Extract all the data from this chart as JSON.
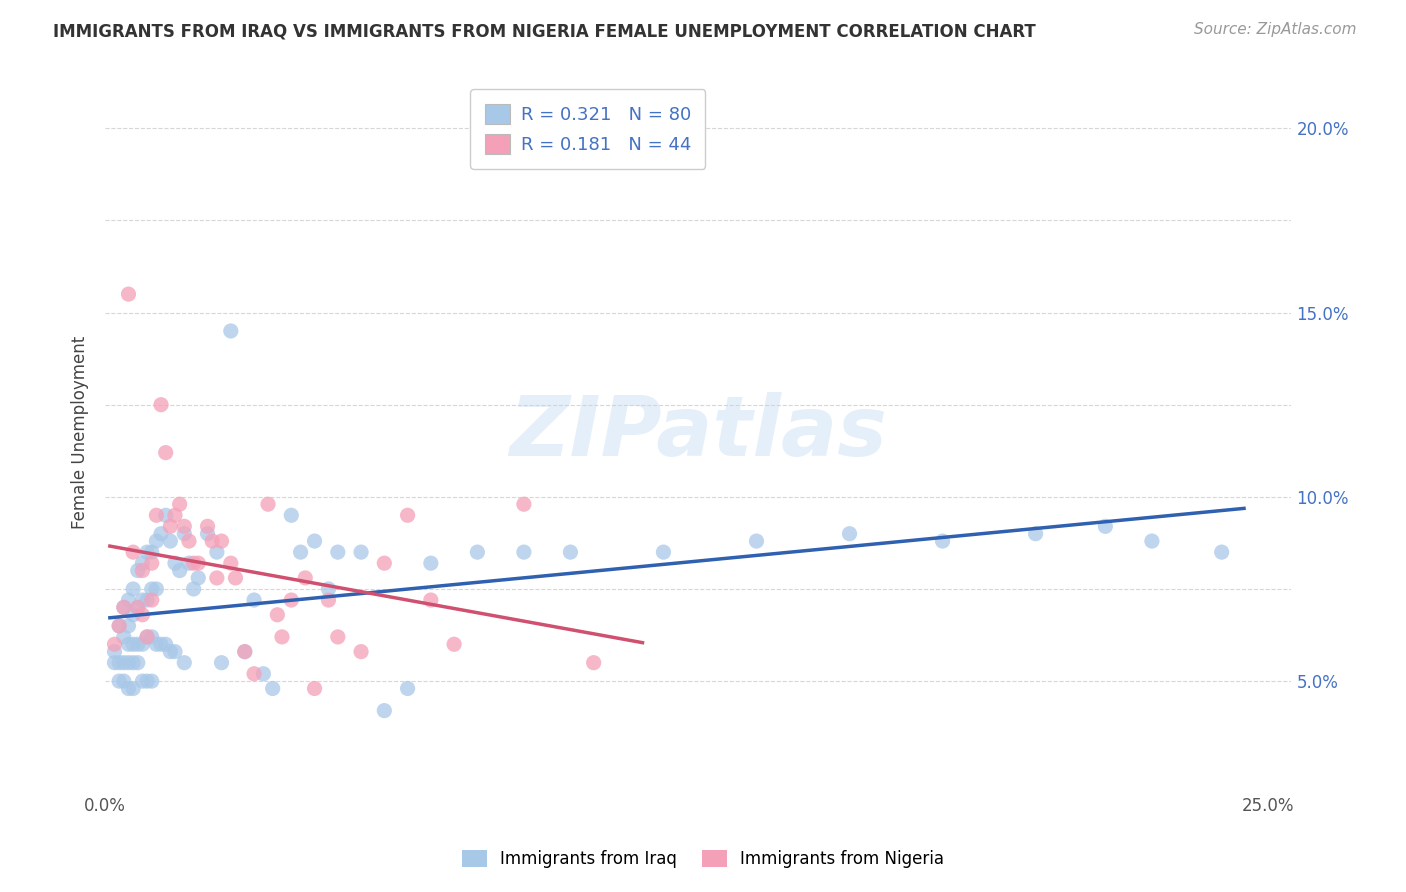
{
  "title": "IMMIGRANTS FROM IRAQ VS IMMIGRANTS FROM NIGERIA FEMALE UNEMPLOYMENT CORRELATION CHART",
  "source": "Source: ZipAtlas.com",
  "ylabel": "Female Unemployment",
  "y_lim": [
    0.02,
    0.215
  ],
  "x_lim": [
    0.0,
    0.255
  ],
  "iraq_R": "0.321",
  "iraq_N": "80",
  "nigeria_R": "0.181",
  "nigeria_N": "44",
  "iraq_color": "#a8c8e8",
  "nigeria_color": "#f4a0b8",
  "iraq_line_color": "#3060b0",
  "nigeria_line_color": "#d05070",
  "legend_label_iraq": "Immigrants from Iraq",
  "legend_label_nigeria": "Immigrants from Nigeria",
  "label_color": "#4472c4",
  "yticks": [
    0.05,
    0.075,
    0.1,
    0.125,
    0.15,
    0.175,
    0.2
  ],
  "ytick_labels": [
    "5.0%",
    "",
    "10.0%",
    "",
    "15.0%",
    "",
    "20.0%"
  ],
  "iraq_x": [
    0.002,
    0.002,
    0.003,
    0.003,
    0.003,
    0.004,
    0.004,
    0.004,
    0.004,
    0.005,
    0.005,
    0.005,
    0.005,
    0.005,
    0.006,
    0.006,
    0.006,
    0.006,
    0.006,
    0.007,
    0.007,
    0.007,
    0.007,
    0.008,
    0.008,
    0.008,
    0.008,
    0.009,
    0.009,
    0.009,
    0.009,
    0.01,
    0.01,
    0.01,
    0.01,
    0.011,
    0.011,
    0.011,
    0.012,
    0.012,
    0.013,
    0.013,
    0.014,
    0.014,
    0.015,
    0.015,
    0.016,
    0.017,
    0.017,
    0.018,
    0.019,
    0.02,
    0.022,
    0.024,
    0.025,
    0.027,
    0.03,
    0.032,
    0.034,
    0.036,
    0.04,
    0.042,
    0.045,
    0.048,
    0.05,
    0.055,
    0.06,
    0.065,
    0.07,
    0.08,
    0.09,
    0.1,
    0.12,
    0.14,
    0.16,
    0.18,
    0.2,
    0.215,
    0.225,
    0.24
  ],
  "iraq_y": [
    0.058,
    0.055,
    0.065,
    0.055,
    0.05,
    0.07,
    0.062,
    0.055,
    0.05,
    0.072,
    0.065,
    0.06,
    0.055,
    0.048,
    0.075,
    0.068,
    0.06,
    0.055,
    0.048,
    0.08,
    0.07,
    0.06,
    0.055,
    0.082,
    0.072,
    0.06,
    0.05,
    0.085,
    0.072,
    0.062,
    0.05,
    0.085,
    0.075,
    0.062,
    0.05,
    0.088,
    0.075,
    0.06,
    0.09,
    0.06,
    0.095,
    0.06,
    0.088,
    0.058,
    0.082,
    0.058,
    0.08,
    0.09,
    0.055,
    0.082,
    0.075,
    0.078,
    0.09,
    0.085,
    0.055,
    0.145,
    0.058,
    0.072,
    0.052,
    0.048,
    0.095,
    0.085,
    0.088,
    0.075,
    0.085,
    0.085,
    0.042,
    0.048,
    0.082,
    0.085,
    0.085,
    0.085,
    0.085,
    0.088,
    0.09,
    0.088,
    0.09,
    0.092,
    0.088,
    0.085
  ],
  "nigeria_x": [
    0.002,
    0.003,
    0.004,
    0.005,
    0.006,
    0.007,
    0.008,
    0.008,
    0.009,
    0.01,
    0.01,
    0.011,
    0.012,
    0.013,
    0.014,
    0.015,
    0.016,
    0.017,
    0.018,
    0.019,
    0.02,
    0.022,
    0.023,
    0.024,
    0.025,
    0.027,
    0.028,
    0.03,
    0.032,
    0.035,
    0.037,
    0.038,
    0.04,
    0.043,
    0.045,
    0.048,
    0.05,
    0.055,
    0.06,
    0.065,
    0.07,
    0.075,
    0.09,
    0.105
  ],
  "nigeria_y": [
    0.06,
    0.065,
    0.07,
    0.155,
    0.085,
    0.07,
    0.08,
    0.068,
    0.062,
    0.082,
    0.072,
    0.095,
    0.125,
    0.112,
    0.092,
    0.095,
    0.098,
    0.092,
    0.088,
    0.082,
    0.082,
    0.092,
    0.088,
    0.078,
    0.088,
    0.082,
    0.078,
    0.058,
    0.052,
    0.098,
    0.068,
    0.062,
    0.072,
    0.078,
    0.048,
    0.072,
    0.062,
    0.058,
    0.082,
    0.095,
    0.072,
    0.06,
    0.098,
    0.055
  ]
}
